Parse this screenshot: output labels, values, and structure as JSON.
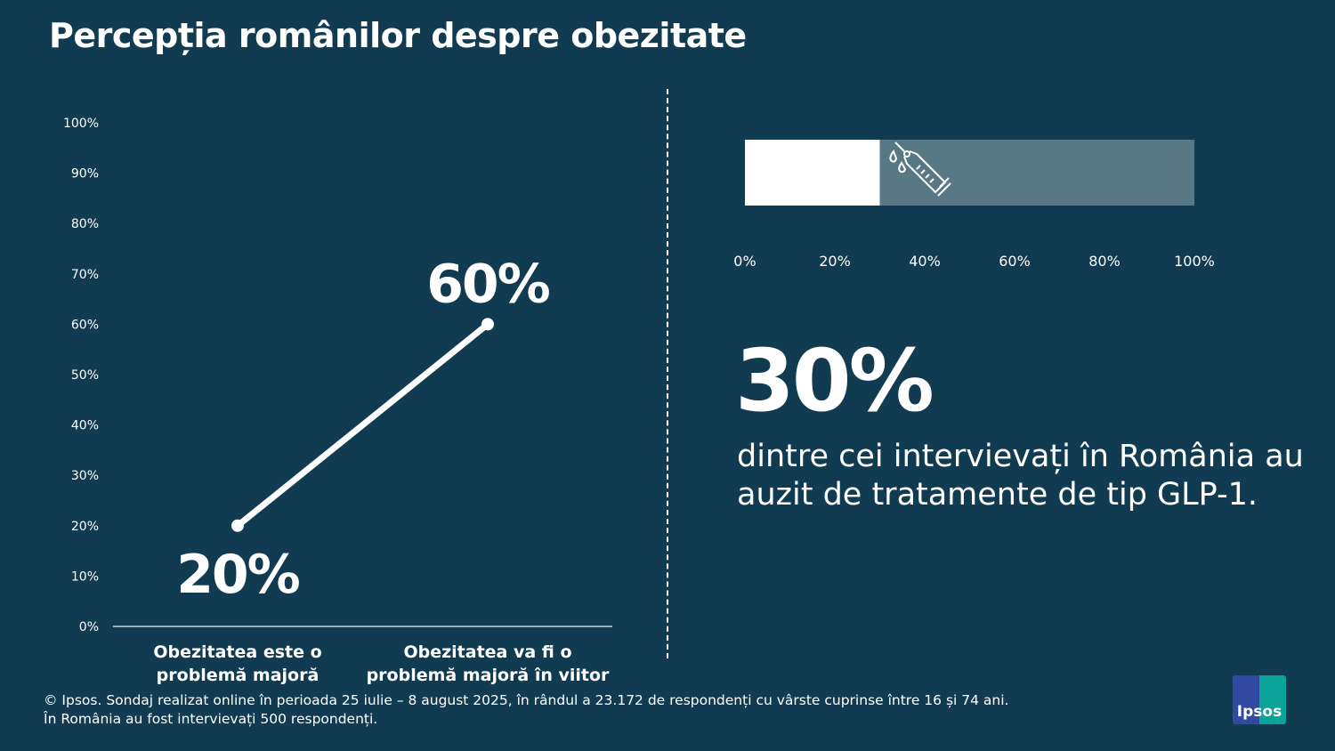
{
  "title": "Percepția românilor despre obezitate",
  "chart_data": [
    {
      "type": "line",
      "categories": [
        "Obezitatea este o problemă majoră",
        "Obezitatea va fi o problemă majoră în viitor"
      ],
      "values": [
        20,
        60
      ],
      "data_labels": [
        "20%",
        "60%"
      ],
      "ylim": [
        0,
        100
      ],
      "yticks": [
        "0%",
        "10%",
        "20%",
        "30%",
        "40%",
        "50%",
        "60%",
        "70%",
        "80%",
        "90%",
        "100%"
      ],
      "grid": false
    },
    {
      "type": "bar",
      "orientation": "horizontal",
      "values": [
        30
      ],
      "xlim": [
        0,
        100
      ],
      "xticks": [
        "0%",
        "20%",
        "40%",
        "60%",
        "80%",
        "100%"
      ],
      "icon": "syringe-icon",
      "colors": {
        "fill": "#ffffff",
        "remainder": "#587885"
      }
    }
  ],
  "highlight": {
    "value": "30%",
    "text": "dintre cei intervievați în România au auzit de tratamente de tip GLP-1."
  },
  "footer": {
    "line1": "© Ipsos. Sondaj realizat online în perioada 25 iulie – 8 august 2025, în rândul a 23.172 de respondenți cu vârste cuprinse între 16 și 74 ani.",
    "line2": "În România au fost intervievați 500 respondenți."
  },
  "logo": "Ipsos",
  "colors": {
    "background": "#113b50"
  }
}
